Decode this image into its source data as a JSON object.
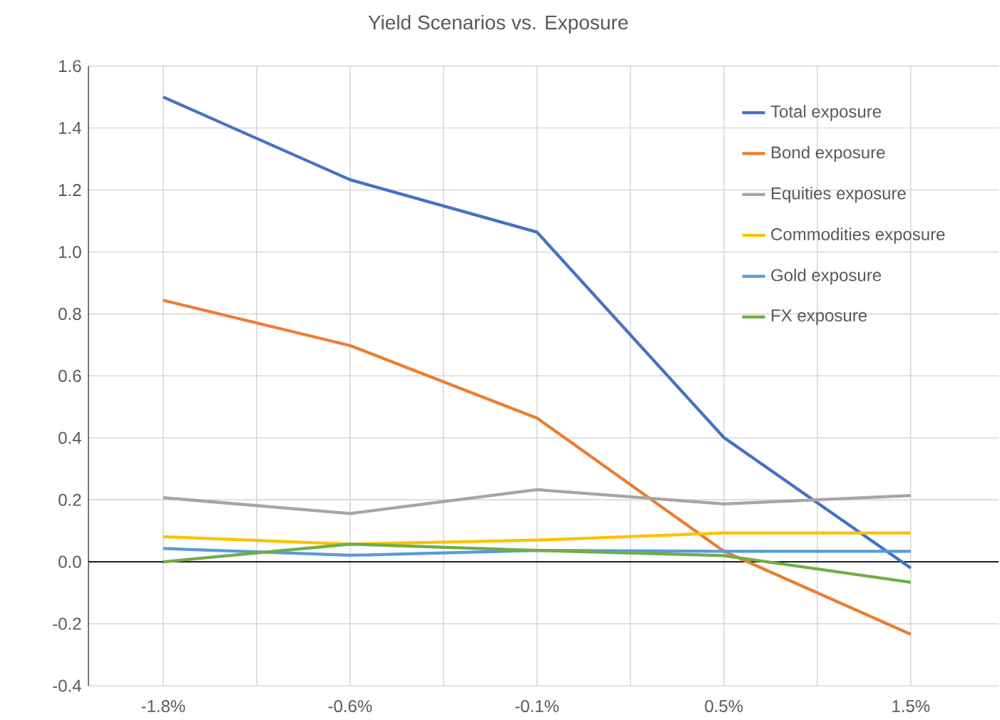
{
  "chart_data": {
    "type": "line",
    "title": "Yield Scenarios vs. Exposure",
    "categories": [
      "-1.8%",
      "-0.6%",
      "-0.1%",
      "0.5%",
      "1.5%"
    ],
    "series": [
      {
        "name": "Total exposure",
        "color": "#4472c4",
        "values": [
          1.5,
          1.233,
          1.064,
          0.401,
          -0.02
        ]
      },
      {
        "name": "Bond exposure",
        "color": "#ed7d31",
        "values": [
          0.844,
          0.698,
          0.464,
          0.034,
          -0.234
        ]
      },
      {
        "name": "Equities exposure",
        "color": "#a5a5a5",
        "values": [
          0.207,
          0.156,
          0.233,
          0.187,
          0.214
        ]
      },
      {
        "name": "Commodities exposure",
        "color": "#ffc000",
        "values": [
          0.081,
          0.057,
          0.07,
          0.093,
          0.093
        ]
      },
      {
        "name": "Gold exposure",
        "color": "#5b9bd5",
        "values": [
          0.043,
          0.021,
          0.037,
          0.034,
          0.034
        ]
      },
      {
        "name": "FX exposure",
        "color": "#70ad47",
        "values": [
          0.0,
          0.057,
          0.037,
          0.02,
          -0.066
        ]
      }
    ],
    "ylim": [
      -0.4,
      1.6
    ],
    "yticks": [
      {
        "value": -0.4,
        "label": "-0.4"
      },
      {
        "value": -0.2,
        "label": "-0.2"
      },
      {
        "value": 0,
        "label": "0.0"
      },
      {
        "value": 0.2,
        "label": "0.2"
      },
      {
        "value": 0.4,
        "label": "0.4"
      },
      {
        "value": 0.6,
        "label": "0.6"
      },
      {
        "value": 0.8,
        "label": "0.8"
      },
      {
        "value": 1.0,
        "label": "1.0"
      },
      {
        "value": 1.2,
        "label": "1.2"
      },
      {
        "value": 1.4,
        "label": "1.4"
      },
      {
        "value": 1.6,
        "label": "1.6"
      }
    ],
    "grid": true,
    "legend": "right",
    "marker": "none",
    "line_style": "solid"
  }
}
